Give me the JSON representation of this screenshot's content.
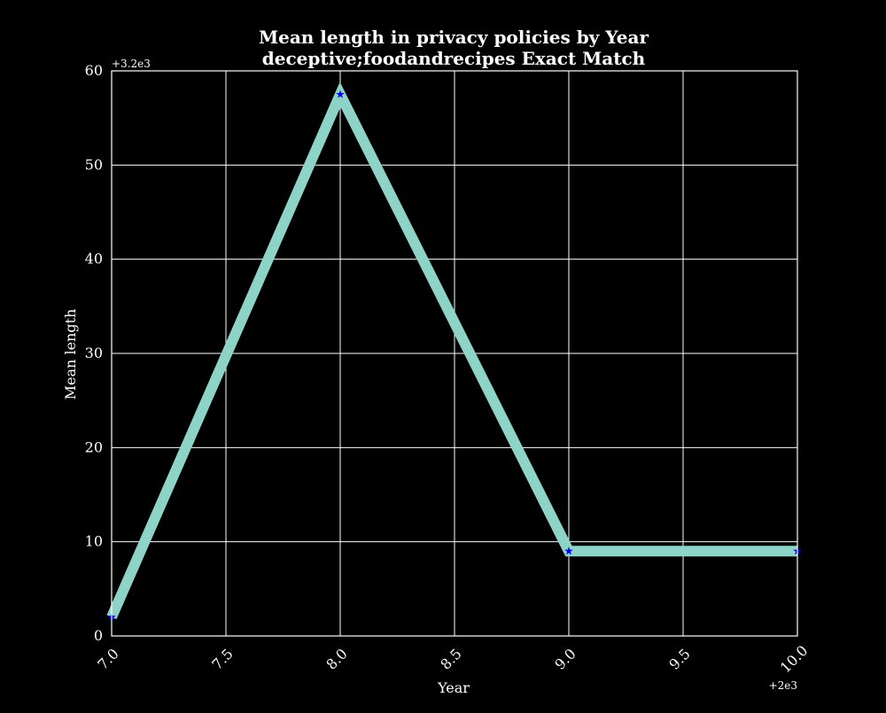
{
  "chart_data": {
    "type": "line",
    "title": "Mean length in privacy policies by Year",
    "subtitle": "deceptive;foodandrecipes Exact Match",
    "xlabel": "Year",
    "ylabel": "Mean length",
    "x_offset_label": "+2e3",
    "y_offset_label": "+3.2e3",
    "xlim": [
      7.0,
      10.0
    ],
    "ylim": [
      0,
      60
    ],
    "x_ticks": [
      "7.0",
      "7.5",
      "8.0",
      "8.5",
      "9.0",
      "9.5",
      "10.0"
    ],
    "y_ticks": [
      "0",
      "10",
      "20",
      "30",
      "40",
      "50",
      "60"
    ],
    "grid": true,
    "colors": {
      "background": "#000000",
      "line": "#8dd3c7",
      "marker": "#0000ff",
      "grid": "#ffffff",
      "text": "#ffffff"
    },
    "series": [
      {
        "x": [
          7.0,
          8.0,
          9.0,
          10.0
        ],
        "y": [
          2,
          57.5,
          9,
          9
        ]
      }
    ]
  }
}
